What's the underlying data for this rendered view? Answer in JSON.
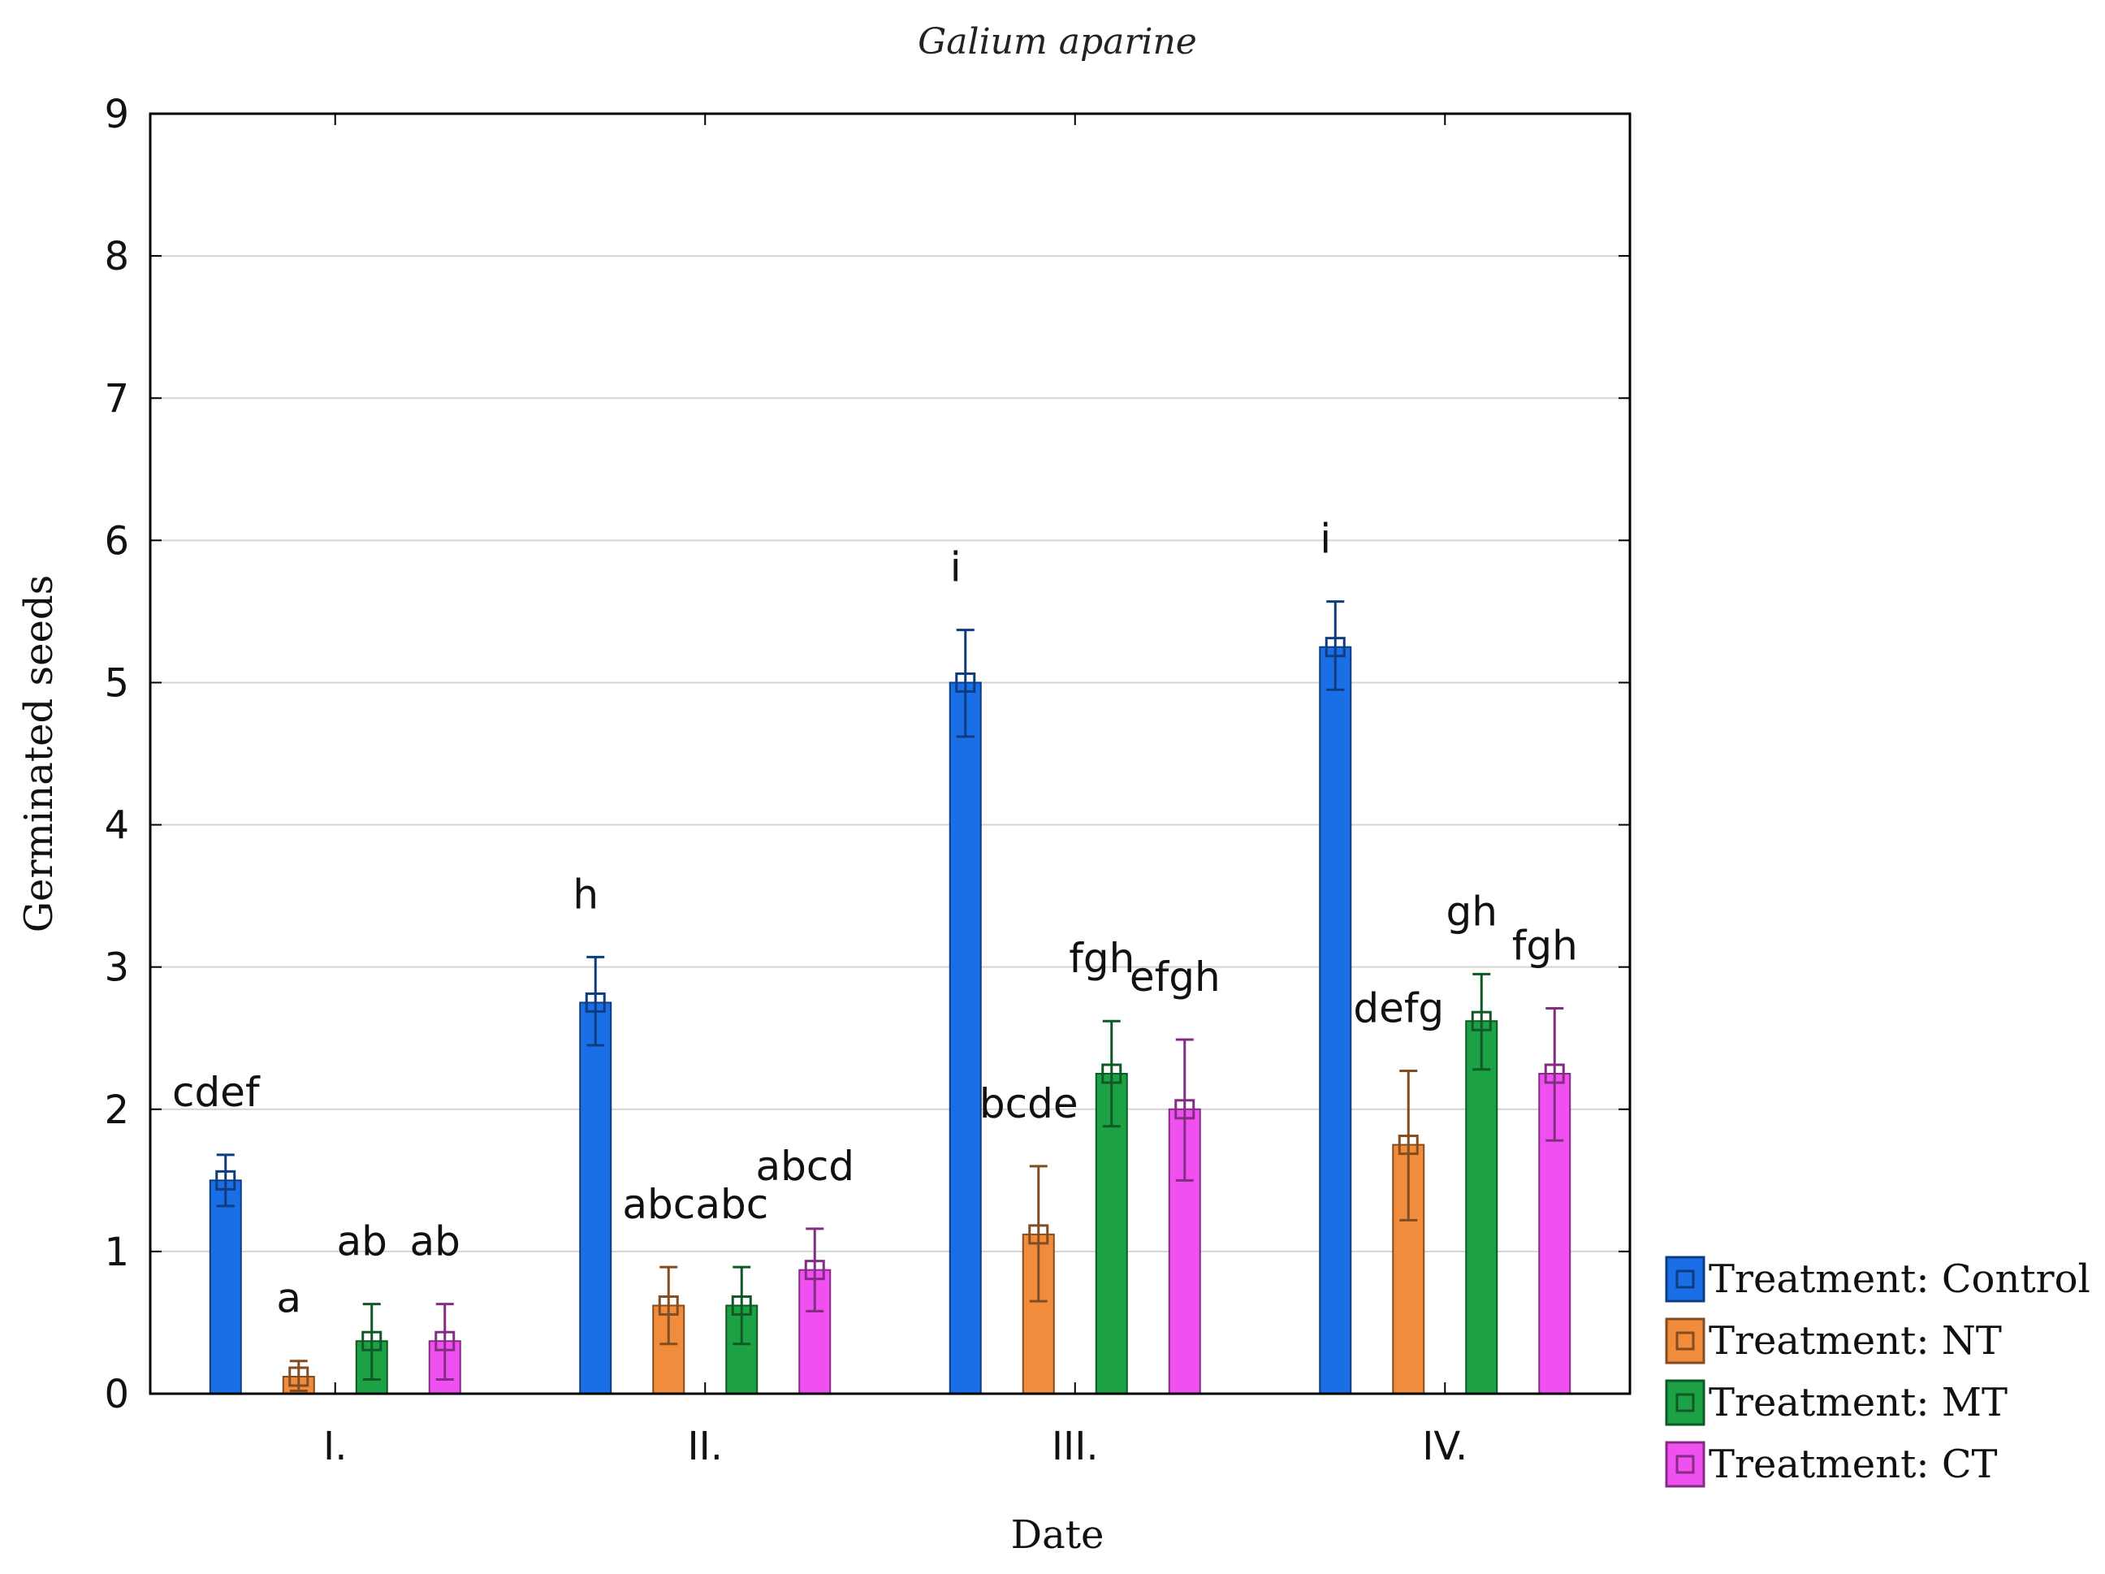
{
  "chart_data": {
    "type": "bar",
    "title": "Galium aparine",
    "xlabel": "Date",
    "ylabel": "Germinated seeds",
    "ylim": [
      0,
      9
    ],
    "yticks": [
      "0",
      "1",
      "2",
      "3",
      "4",
      "5",
      "6",
      "7",
      "8",
      "9"
    ],
    "grid": true,
    "legend_position": "right-bottom",
    "categories": [
      "I.",
      "II.",
      "III.",
      "IV."
    ],
    "series": [
      {
        "name": "Treatment: Control",
        "color": "#1a6fe6",
        "values": [
          1.5,
          2.75,
          5.0,
          5.25
        ],
        "err_low": [
          1.32,
          2.45,
          4.62,
          4.95
        ],
        "err_high": [
          1.68,
          3.07,
          5.37,
          5.57
        ],
        "letters": [
          "cdef",
          "h",
          "i",
          "i"
        ]
      },
      {
        "name": "Treatment: NT",
        "color": "#f08c3c",
        "values": [
          0.12,
          0.62,
          1.12,
          1.75
        ],
        "err_low": [
          0.02,
          0.35,
          0.65,
          1.22
        ],
        "err_high": [
          0.23,
          0.89,
          1.6,
          2.27
        ],
        "letters": [
          "a",
          "abc",
          "bcde",
          "defg"
        ]
      },
      {
        "name": "Treatment: MT",
        "color": "#1ca245",
        "values": [
          0.37,
          0.62,
          2.25,
          2.62
        ],
        "err_low": [
          0.1,
          0.35,
          1.88,
          2.28
        ],
        "err_high": [
          0.63,
          0.89,
          2.62,
          2.95
        ],
        "letters": [
          "ab",
          "abc",
          "fgh",
          "gh"
        ]
      },
      {
        "name": "Treatment: CT",
        "color": "#f050f0",
        "values": [
          0.37,
          0.87,
          2.0,
          2.25
        ],
        "err_low": [
          0.1,
          0.58,
          1.5,
          1.78
        ],
        "err_high": [
          0.63,
          1.16,
          2.49,
          2.71
        ],
        "letters": [
          "ab",
          "abcd",
          "efgh",
          "fgh"
        ]
      }
    ]
  }
}
